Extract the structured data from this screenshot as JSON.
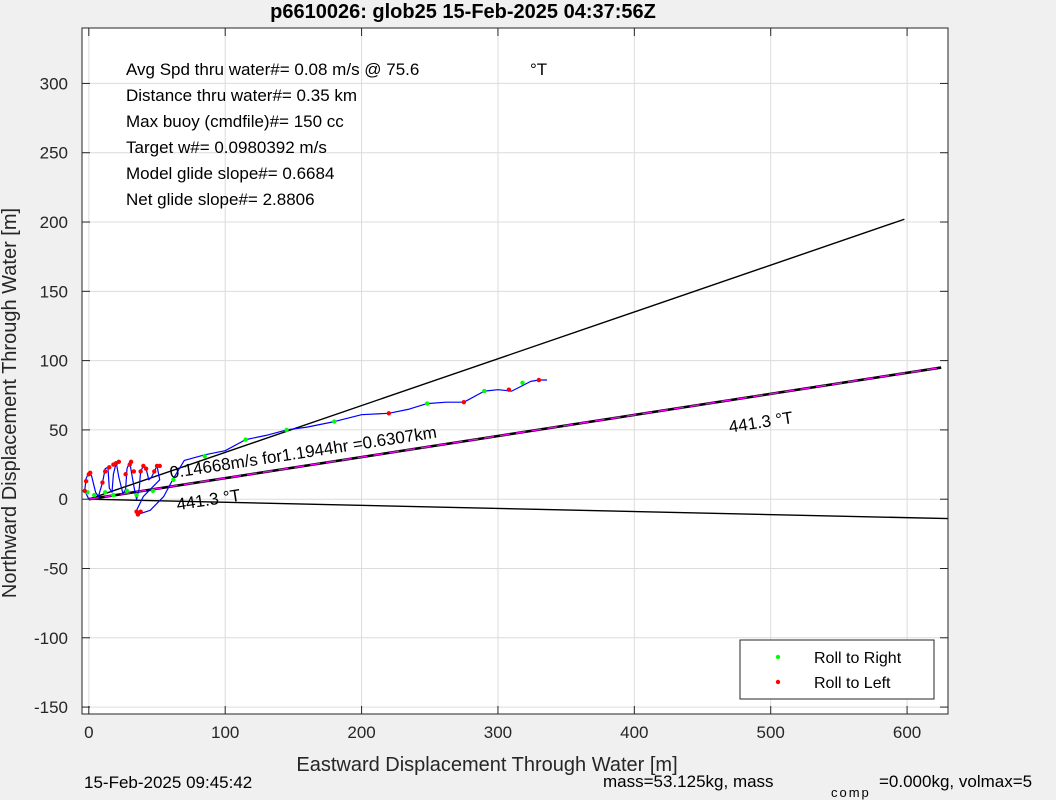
{
  "chart_data": {
    "type": "line",
    "title": "p6610026: glob25 15-Feb-2025 04:37:56Z",
    "xlabel": "Eastward Displacement Through Water [m]",
    "ylabel": "Northward Displacement Through Water [m]",
    "xlim": [
      -5,
      630
    ],
    "ylim": [
      -155,
      340
    ],
    "xticks": [
      0,
      100,
      200,
      300,
      400,
      500,
      600
    ],
    "yticks": [
      -150,
      -100,
      -50,
      0,
      50,
      100,
      150,
      200,
      250,
      300
    ],
    "grid": true,
    "legend_placement": "bottom-right",
    "legend": [
      {
        "label": "Roll to Right",
        "color": "#00ff00"
      },
      {
        "label": "Roll to Left",
        "color": "#ff0000"
      }
    ],
    "info_lines": [
      "Avg Spd thru water#=  0.08 m/s @  75.6",
      "Distance thru water#=  0.35 km",
      "Max buoy (cmdfile)#= 150 cc",
      "Target w#= 0.0980392 m/s",
      "Model glide slope#= 0.6684",
      "Net glide slope#= 2.8806"
    ],
    "info_unit": "°T",
    "annotations": [
      {
        "text": "0.14668m/s for1.1944hr =0.6307km",
        "x": 60,
        "y": 15,
        "angle_data": [
          0,
          0,
          630,
          95
        ]
      },
      {
        "text": "441.3  °T",
        "x": 470,
        "y": 48,
        "angle_data": [
          0,
          0,
          630,
          95
        ]
      },
      {
        "text": "441.3  °T",
        "x": 65,
        "y": -8,
        "angle_data": [
          0,
          0,
          630,
          95
        ]
      }
    ],
    "lines": [
      {
        "name": "upper",
        "color": "#000000",
        "x": [
          0,
          598
        ],
        "y": [
          0,
          202
        ]
      },
      {
        "name": "lower",
        "color": "#000000",
        "x": [
          0,
          630
        ],
        "y": [
          0,
          -14
        ]
      },
      {
        "name": "current",
        "color": "#000000",
        "dash": true,
        "x": [
          0,
          625
        ],
        "y": [
          0,
          95
        ]
      },
      {
        "name": "current-overlay",
        "color": "#ff00ff",
        "x": [
          0,
          625
        ],
        "y": [
          0,
          95
        ]
      }
    ],
    "track": {
      "color": "#0000ff",
      "x": [
        0,
        -3,
        -2,
        0,
        2,
        5,
        7,
        10,
        12,
        14,
        15,
        17,
        18,
        20,
        20,
        22,
        25,
        27,
        28,
        30,
        32,
        34,
        35,
        37,
        38,
        40,
        42,
        44,
        46,
        48,
        50,
        52,
        40,
        35,
        36,
        45,
        55,
        62,
        70,
        85,
        100,
        115,
        130,
        145,
        160,
        180,
        200,
        220,
        235,
        248,
        262,
        275,
        290,
        300,
        310,
        318,
        324,
        330,
        336
      ],
      "y": [
        0,
        6,
        15,
        19,
        17,
        5,
        2,
        12,
        22,
        23,
        8,
        5,
        18,
        26,
        27,
        16,
        4,
        7,
        22,
        27,
        15,
        4,
        0,
        8,
        20,
        24,
        22,
        14,
        16,
        20,
        24,
        14,
        2,
        -8,
        -11,
        -8,
        2,
        15,
        28,
        32,
        35,
        43,
        46,
        50,
        52,
        56,
        61,
        62,
        65,
        69,
        70,
        70,
        78,
        79,
        78,
        82,
        85,
        86,
        86
      ]
    },
    "roll_right": {
      "x": [
        -1,
        4,
        12,
        18,
        28,
        35,
        47,
        62,
        85,
        115,
        145,
        180,
        248,
        290,
        318
      ],
      "y": [
        5,
        3,
        5,
        3,
        6,
        3,
        6,
        14,
        31,
        43,
        50,
        56,
        69,
        78,
        84
      ]
    },
    "roll_left": {
      "x": [
        -3,
        -2,
        0,
        1,
        10,
        12,
        15,
        18,
        20,
        22,
        27,
        30,
        31,
        33,
        38,
        40,
        42,
        48,
        50,
        52,
        35,
        36,
        38,
        220,
        275,
        308,
        330
      ],
      "y": [
        6,
        13,
        18,
        19,
        12,
        20,
        23,
        25,
        26,
        27,
        18,
        25,
        27,
        20,
        20,
        24,
        22,
        20,
        24,
        24,
        -9,
        -11,
        -9,
        62,
        70,
        79,
        86
      ]
    },
    "footer": {
      "left": "15-Feb-2025 09:45:42",
      "right_main": "mass=53.125kg, mass",
      "right_sub": "comp",
      "right_tail": "=0.000kg, volmax=5"
    }
  }
}
